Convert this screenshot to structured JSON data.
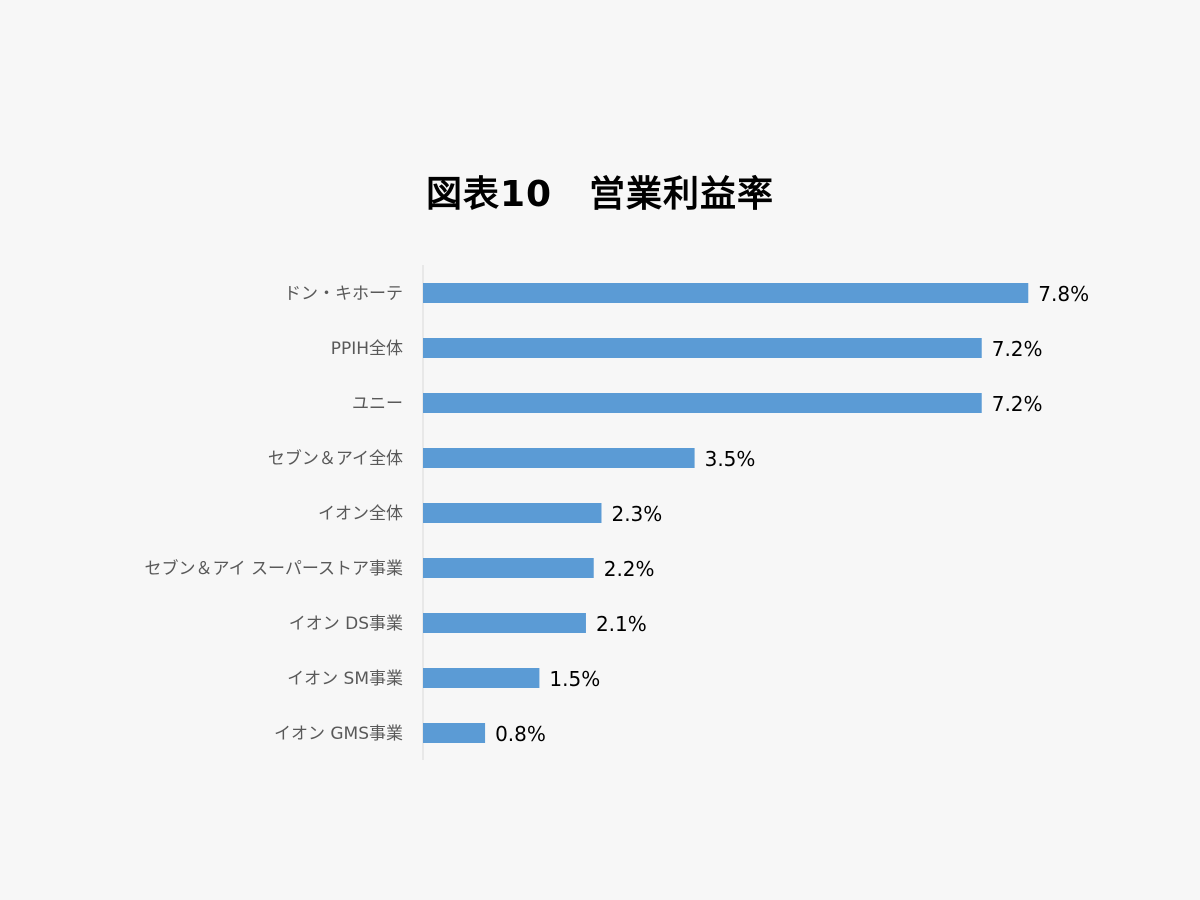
{
  "chart_data": {
    "type": "bar",
    "orientation": "horizontal",
    "title": "図表10　営業利益率",
    "categories": [
      "ドン・キホーテ",
      "PPIH全体",
      "ユニー",
      "セブン＆アイ全体",
      "イオン全体",
      "セブン＆アイ スーパーストア事業",
      "イオン DS事業",
      "イオン SM事業",
      "イオン GMS事業"
    ],
    "values": [
      7.8,
      7.2,
      7.2,
      3.5,
      2.3,
      2.2,
      2.1,
      1.5,
      0.8
    ],
    "data_labels": [
      "7.8%",
      "7.2%",
      "7.2%",
      "3.5%",
      "2.3%",
      "2.2%",
      "2.1%",
      "1.5%",
      "0.8%"
    ],
    "unit": "%",
    "xlabel": "",
    "ylabel": "",
    "xlim": [
      0,
      8
    ],
    "grid": false,
    "legend": "none",
    "bar_color": "#5b9bd5"
  }
}
